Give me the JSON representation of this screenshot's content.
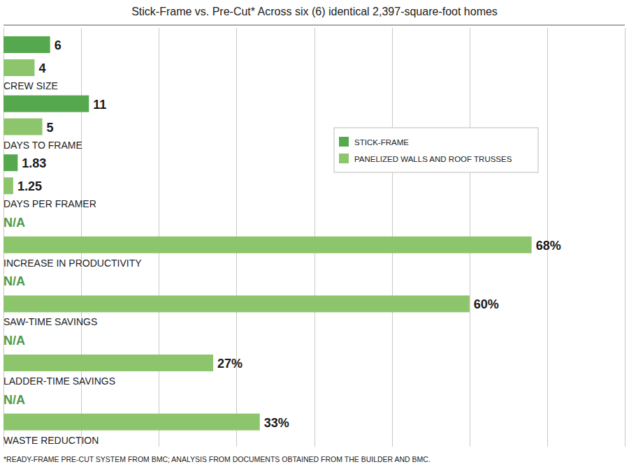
{
  "chart_data": {
    "type": "bar",
    "title": "Stick-Frame vs. Pre-Cut* Across six (6) identical 2,397-square-foot homes",
    "footnote": "*READY-FRAME PRE-CUT SYSTEM FROM BMC; ANALYSIS FROM DOCUMENTS OBTAINED FROM THE BUILDER AND BMC.",
    "orientation": "horizontal",
    "categories": [
      "CREW SIZE",
      "DAYS TO FRAME",
      "DAYS PER FRAMER",
      "INCREASE IN PRODUCTIVITY",
      "SAW-TIME SAVINGS",
      "LADDER-TIME SAVINGS",
      "WASTE REDUCTION"
    ],
    "series": [
      {
        "name": "STICK-FRAME",
        "color": "#56a84f",
        "values": [
          6,
          11,
          1.83,
          null,
          null,
          null,
          null
        ],
        "value_labels": [
          "6",
          "11",
          "1.83",
          "N/A",
          "N/A",
          "N/A",
          "N/A"
        ]
      },
      {
        "name": "PANELIZED WALLS AND ROOF TRUSSES",
        "color": "#8dc56c",
        "values": [
          4,
          5,
          1.25,
          68,
          60,
          27,
          33
        ],
        "value_labels": [
          "4",
          "5",
          "1.25",
          "68%",
          "60%",
          "27%",
          "33%"
        ]
      }
    ],
    "xlim": [
      0,
      80
    ],
    "xticks": [
      0,
      10,
      20,
      30,
      40,
      50,
      60,
      70,
      80
    ],
    "grid": true,
    "tick_labels": false,
    "data_labels": true,
    "legend": "right"
  }
}
